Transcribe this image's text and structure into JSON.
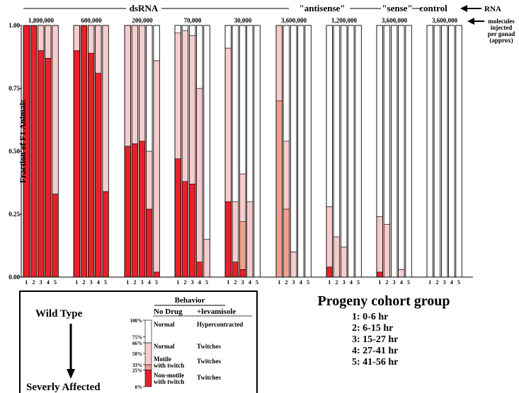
{
  "chart_data": {
    "type": "bar",
    "stacked": true,
    "ylabel": "Fraction of F1 Animals",
    "ylim": [
      0,
      1
    ],
    "yticks": [
      "0.00",
      "0.25",
      "0.50",
      "0.75",
      "1.00"
    ],
    "cohorts": [
      "1",
      "2",
      "3",
      "4",
      "5"
    ],
    "categories": [
      "Non-motile with twitch",
      "Motile with twitch",
      "Normal (twitches)",
      "Normal (hypercontracted)"
    ],
    "colors": [
      "#e8202a",
      "#f0a091",
      "#f7cccc",
      "#ffffff"
    ],
    "group_labels": [
      {
        "text": "dsRNA"
      },
      {
        "text": "\"antisense\""
      },
      {
        "text": "\"sense\""
      },
      {
        "text": "control"
      }
    ],
    "rna_label": "RNA",
    "molecules_label": [
      "molecules",
      "injected",
      "per gonad",
      "(approx)"
    ],
    "groups": [
      {
        "molecules": "1,800,000",
        "type": "dsRNA",
        "bars": [
          [
            1.0,
            0,
            0,
            0
          ],
          [
            1.0,
            0,
            0,
            0
          ],
          [
            0.9,
            0,
            0.1,
            0
          ],
          [
            0.87,
            0,
            0.13,
            0
          ],
          [
            0.33,
            0,
            0.67,
            0
          ]
        ]
      },
      {
        "molecules": "600,000",
        "type": "dsRNA",
        "bars": [
          [
            0.9,
            0,
            0.1,
            0
          ],
          [
            1.0,
            0,
            0,
            0
          ],
          [
            0.89,
            0,
            0.11,
            0
          ],
          [
            0.81,
            0,
            0.19,
            0
          ],
          [
            0.34,
            0,
            0.66,
            0
          ]
        ]
      },
      {
        "molecules": "200,000",
        "type": "dsRNA",
        "bars": [
          [
            0.52,
            0,
            0.48,
            0
          ],
          [
            0.53,
            0,
            0.47,
            0
          ],
          [
            0.54,
            0,
            0.46,
            0
          ],
          [
            0.27,
            0,
            0.23,
            0.5
          ],
          [
            0.02,
            0,
            0.84,
            0.14
          ]
        ]
      },
      {
        "molecules": "70,000",
        "type": "dsRNA",
        "bars": [
          [
            0.47,
            0,
            0.5,
            0.03
          ],
          [
            0.38,
            0,
            0.6,
            0.02
          ],
          [
            0.37,
            0,
            0.59,
            0.04
          ],
          [
            0.06,
            0,
            0.69,
            0.25
          ],
          [
            0.0,
            0,
            0.15,
            0.85
          ]
        ]
      },
      {
        "molecules": "30,000",
        "type": "dsRNA",
        "bars": [
          [
            0.3,
            0,
            0.61,
            0.09
          ],
          [
            0.06,
            0,
            0.24,
            0.7
          ],
          [
            0.03,
            0.19,
            0.19,
            0.59
          ],
          [
            0.0,
            0,
            0.3,
            0.7
          ],
          [
            0.0,
            0,
            0,
            1.0
          ]
        ]
      },
      {
        "molecules": "3,600,000",
        "type": "antisense",
        "bars": [
          [
            0.0,
            0.7,
            0.3,
            0
          ],
          [
            0.0,
            0.27,
            0.27,
            0.46
          ],
          [
            0.0,
            0,
            0.1,
            0.9
          ],
          [
            0.0,
            0,
            0,
            1.0
          ],
          [
            0.0,
            0,
            0,
            1.0
          ]
        ]
      },
      {
        "molecules": "1,200,000",
        "type": "antisense",
        "bars": [
          [
            0.04,
            0,
            0.24,
            0.72
          ],
          [
            0.0,
            0,
            0.16,
            0.84
          ],
          [
            0.0,
            0,
            0.12,
            0.88
          ],
          [
            0.0,
            0,
            0,
            1.0
          ],
          [
            0.0,
            0,
            0,
            1.0
          ]
        ]
      },
      {
        "molecules": "3,600,000",
        "type": "sense",
        "bars": [
          [
            0.02,
            0,
            0.22,
            0.76
          ],
          [
            0.0,
            0,
            0.21,
            0.79
          ],
          [
            0.0,
            0,
            0,
            1.0
          ],
          [
            0.0,
            0,
            0.03,
            0.97
          ],
          [
            0.0,
            0,
            0,
            1.0
          ]
        ]
      },
      {
        "molecules": "3,600,000",
        "type": "control",
        "bars": [
          [
            0,
            0,
            0,
            1.0
          ],
          [
            0,
            0,
            0,
            1.0
          ],
          [
            0,
            0,
            0,
            1.0
          ],
          [
            0,
            0,
            0,
            1.0
          ],
          [
            0,
            0,
            0,
            1.0
          ]
        ]
      }
    ],
    "legend": {
      "wild_type": "Wild Type",
      "severly_affected": "Severly Affected",
      "behavior_header": "Behavior",
      "no_drug_header": "No Drug",
      "levamisole_header": "+levamisole",
      "pct_ticks": [
        "100%",
        "75%",
        "66%",
        "50%",
        "33%",
        "25%",
        "0%"
      ],
      "rows": [
        {
          "no_drug": "Normal",
          "levamisole": "Hypercontracted"
        },
        {
          "no_drug": "Normal",
          "levamisole": "Twitches"
        },
        {
          "no_drug": "Motile\nwith twitch",
          "levamisole": "Twitches"
        },
        {
          "no_drug": "Non-motile\nwith twitch",
          "levamisole": "Twitches"
        }
      ]
    },
    "cohort_legend": {
      "title": "Progeny cohort group",
      "items": [
        "1: 0-6 hr",
        "2: 6-15 hr",
        "3: 15-27 hr",
        "4: 27-41 hr",
        "5: 41-56 hr"
      ]
    }
  }
}
